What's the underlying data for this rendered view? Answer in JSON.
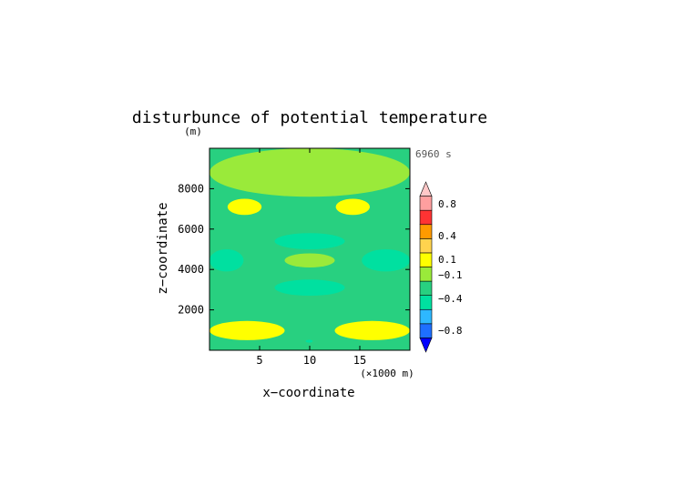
{
  "chart_data": {
    "type": "heatmap",
    "title": "disturbunce of potential temperature",
    "time_label": "6960 s",
    "xlabel": "x−coordinate",
    "ylabel": "z−coordinate",
    "xunit": "(×1000 m)",
    "yunit": "(m)",
    "xlim": [
      0,
      20
    ],
    "ylim": [
      0,
      10000
    ],
    "x_ticks": [
      5,
      10,
      15
    ],
    "y_ticks": [
      2000,
      4000,
      6000,
      8000
    ],
    "x_tick_labels": [
      "5",
      "10",
      "15"
    ],
    "y_tick_labels": [
      "2000",
      "4000",
      "6000",
      "8000"
    ],
    "colorbar": {
      "levels": [
        -0.9,
        -0.7,
        -0.5,
        -0.3,
        -0.2,
        -0.05,
        0.05,
        0.2,
        0.3,
        0.5,
        0.7,
        0.9
      ],
      "colors": [
        "#0000ff",
        "#1e6fff",
        "#2eb8ff",
        "#00e0a0",
        "#28d080",
        "#9aea3a",
        "#ffff00",
        "#ffd34e",
        "#ff9a00",
        "#ff3333",
        "#ff9f9f",
        "#ffc8c8"
      ],
      "tick_values": [
        0.8,
        0.4,
        0.1,
        -0.1,
        -0.4,
        -0.8
      ],
      "tick_labels": [
        "0.8",
        "0.4",
        "0.1",
        "−0.1",
        "−0.4",
        "−0.8"
      ]
    },
    "background_level": -0.1,
    "regions": [
      {
        "name": "warm-top-left",
        "value": 0.15,
        "x": [
          1.8,
          5.2
        ],
        "z": [
          6700,
          7500
        ]
      },
      {
        "name": "warm-top-right",
        "value": 0.15,
        "x": [
          12.6,
          16.0
        ],
        "z": [
          6700,
          7500
        ]
      },
      {
        "name": "neutral-top-band",
        "value": 0.0,
        "x": [
          0,
          20
        ],
        "z": [
          7600,
          10000
        ]
      },
      {
        "name": "cool-center-upper",
        "value": -0.3,
        "x": [
          6.5,
          13.5
        ],
        "z": [
          5000,
          5800
        ]
      },
      {
        "name": "neutral-center",
        "value": 0.0,
        "x": [
          7.5,
          12.5
        ],
        "z": [
          4100,
          4800
        ]
      },
      {
        "name": "cool-left-mid",
        "value": -0.3,
        "x": [
          0,
          3.4
        ],
        "z": [
          3900,
          5000
        ]
      },
      {
        "name": "cool-right-mid",
        "value": -0.3,
        "x": [
          15.2,
          20
        ],
        "z": [
          3900,
          5000
        ]
      },
      {
        "name": "cool-center-lower",
        "value": -0.3,
        "x": [
          6.5,
          13.5
        ],
        "z": [
          2700,
          3500
        ]
      },
      {
        "name": "warm-bottom-left",
        "value": 0.15,
        "x": [
          0,
          7.5
        ],
        "z": [
          500,
          1450
        ]
      },
      {
        "name": "warm-bottom-right",
        "value": 0.15,
        "x": [
          12.5,
          20
        ],
        "z": [
          500,
          1450
        ]
      },
      {
        "name": "cool-bottom-center",
        "value": -0.3,
        "x": [
          9.6,
          10.3
        ],
        "z": [
          380,
          520
        ]
      }
    ]
  }
}
